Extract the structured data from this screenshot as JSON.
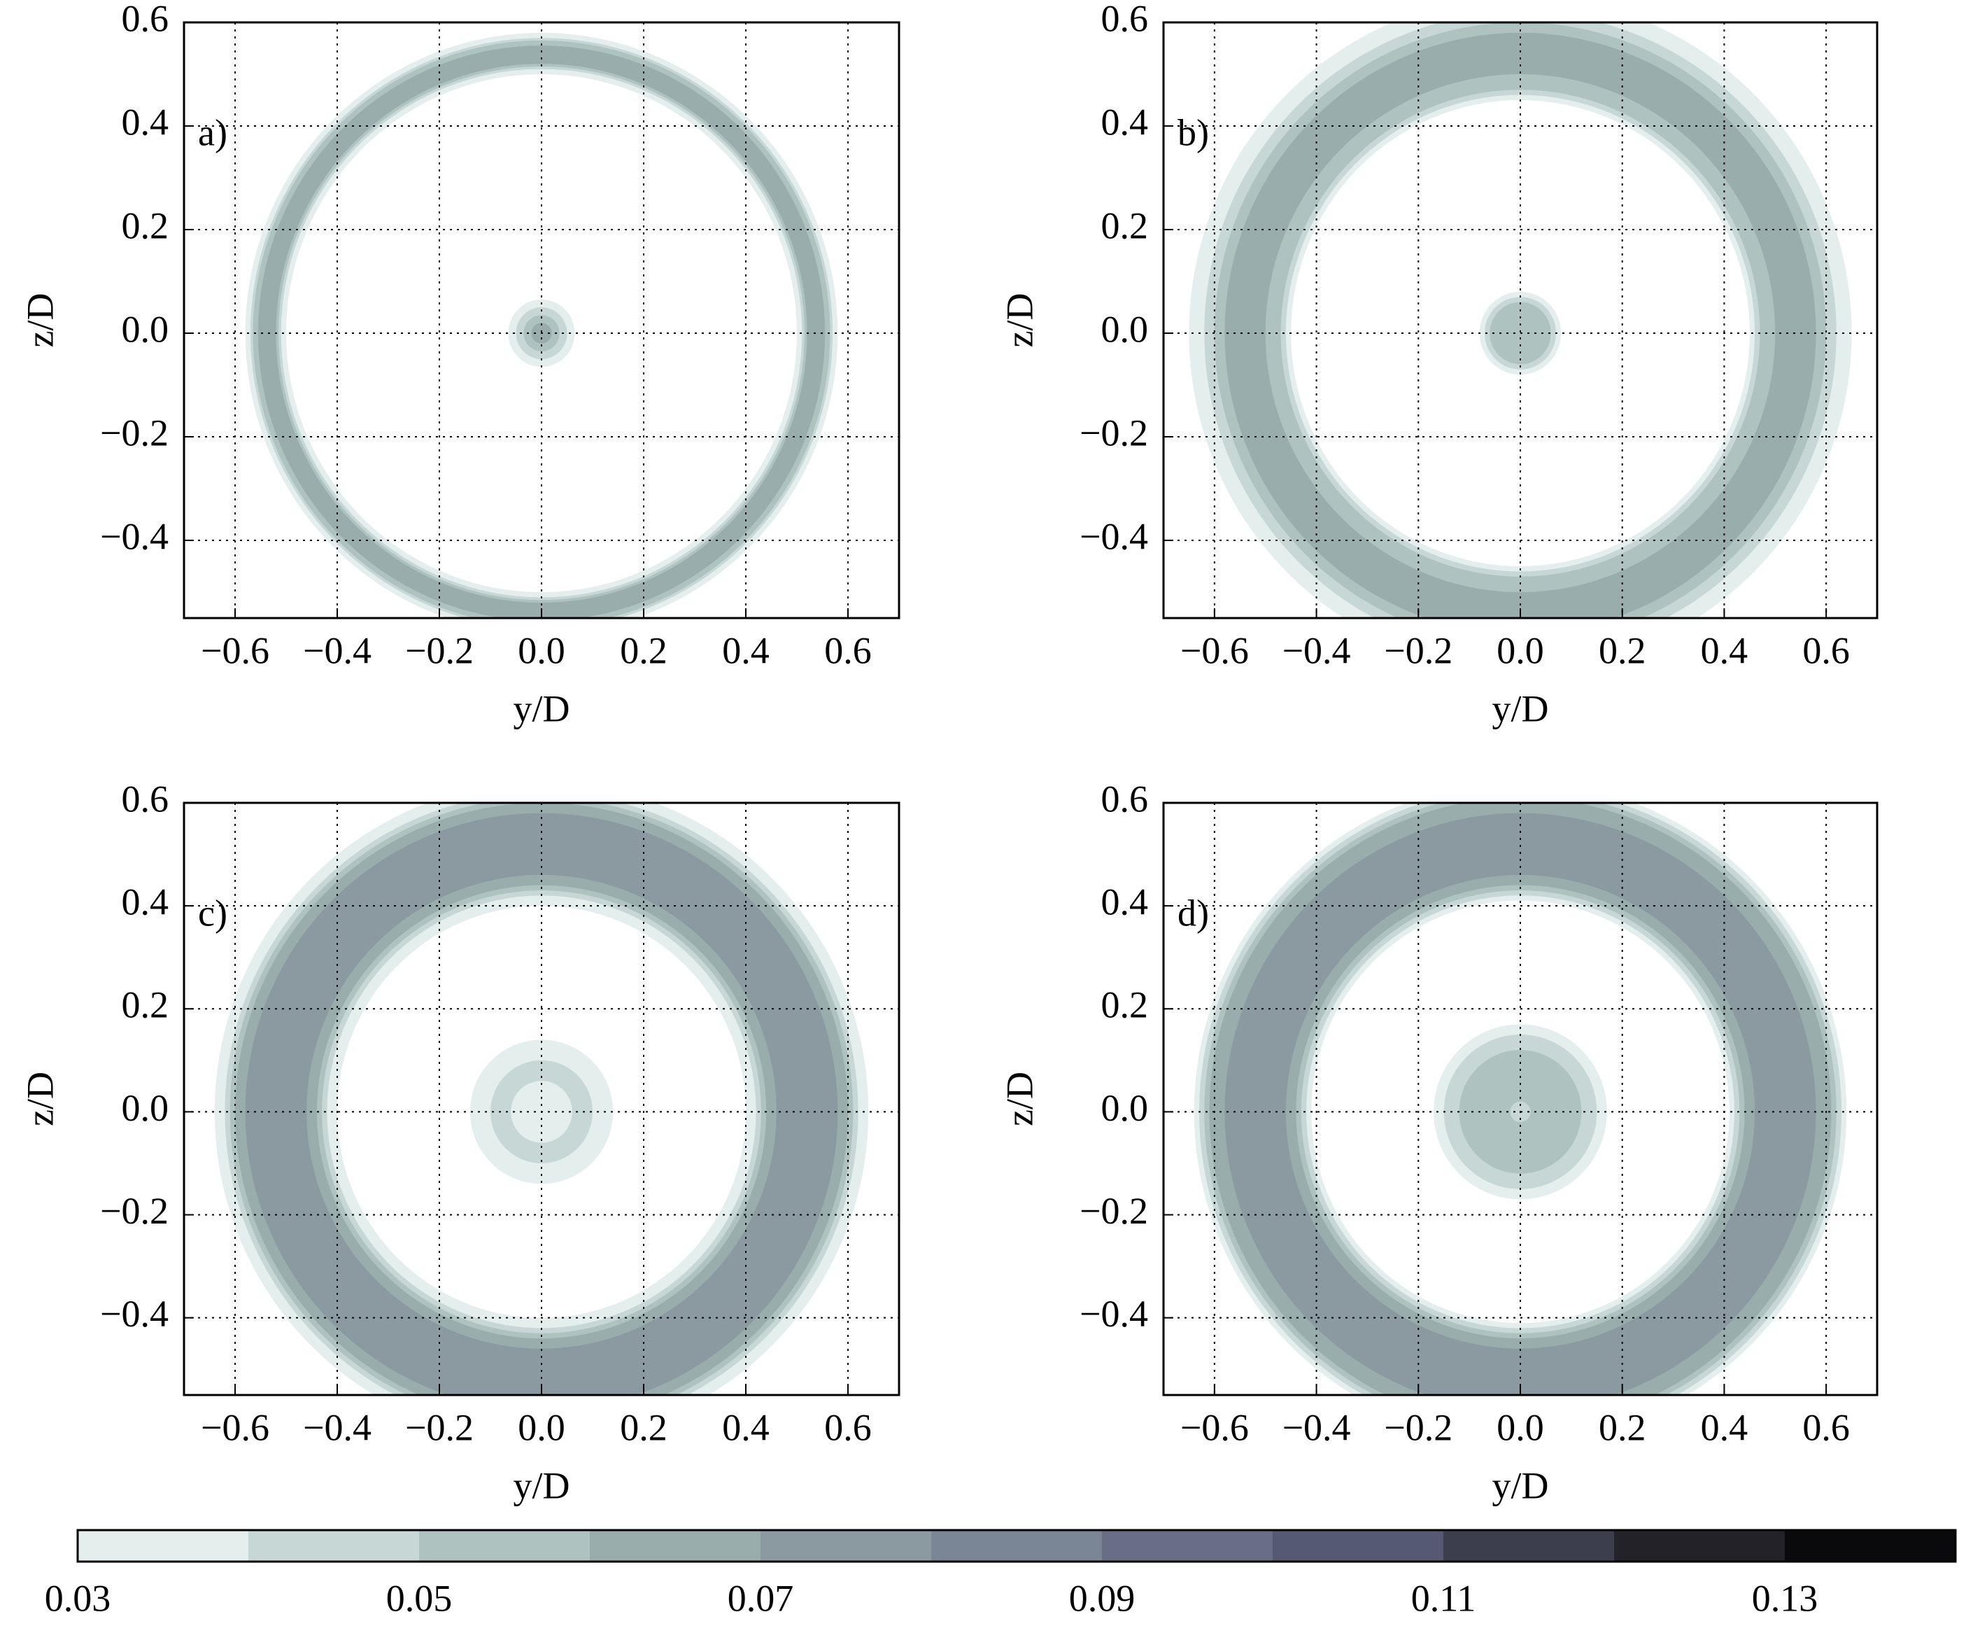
{
  "chart_data": [
    {
      "type": "contour",
      "label": "a)",
      "xlabel": "y/D",
      "ylabel": "z/D",
      "xlim": [
        -0.7,
        0.7
      ],
      "ylim": [
        -0.55,
        0.6
      ],
      "xticks": [
        {
          "value": -0.6,
          "label": "−0.6"
        },
        {
          "value": -0.4,
          "label": "−0.4"
        },
        {
          "value": -0.2,
          "label": "−0.2"
        },
        {
          "value": 0,
          "label": "0.0"
        },
        0.2,
        0.4,
        0.6
      ],
      "yticks": [
        {
          "value": -0.4,
          "label": "−0.4"
        },
        {
          "value": -0.2,
          "label": "−0.2"
        },
        {
          "value": 0,
          "label": "0.0"
        },
        0.2,
        0.4,
        0.6
      ],
      "grid": true,
      "contours": [
        {
          "level": 0.03,
          "radius": [
            0.5,
            0.58
          ]
        },
        {
          "level": 0.04,
          "radius": [
            0.51,
            0.57
          ]
        },
        {
          "level": 0.05,
          "radius": [
            0.515,
            0.565
          ]
        },
        {
          "level": 0.06,
          "radius": [
            0.52,
            0.555
          ]
        },
        {
          "level": 0.03,
          "radius": [
            0,
            0.065
          ]
        },
        {
          "level": 0.04,
          "radius": [
            0,
            0.05
          ]
        },
        {
          "level": 0.05,
          "radius": [
            0,
            0.035
          ]
        },
        {
          "level": 0.06,
          "radius": [
            0,
            0.02
          ]
        }
      ]
    },
    {
      "type": "contour",
      "label": "b)",
      "xlabel": "y/D",
      "ylabel": "z/D",
      "xlim": [
        -0.7,
        0.7
      ],
      "ylim": [
        -0.55,
        0.6
      ],
      "xticks": [
        {
          "value": -0.6,
          "label": "−0.6"
        },
        {
          "value": -0.4,
          "label": "−0.4"
        },
        {
          "value": -0.2,
          "label": "−0.2"
        },
        {
          "value": 0,
          "label": "0.0"
        },
        0.2,
        0.4,
        0.6
      ],
      "yticks": [
        {
          "value": -0.4,
          "label": "−0.4"
        },
        {
          "value": -0.2,
          "label": "−0.2"
        },
        {
          "value": 0,
          "label": "0.0"
        },
        0.2,
        0.4,
        0.6
      ],
      "grid": true,
      "contours": [
        {
          "level": 0.03,
          "radius": [
            0.45,
            0.65
          ]
        },
        {
          "level": 0.04,
          "radius": [
            0.46,
            0.62
          ]
        },
        {
          "level": 0.05,
          "radius": [
            0.47,
            0.6
          ]
        },
        {
          "level": 0.06,
          "radius": [
            0.5,
            0.58
          ]
        },
        {
          "level": 0.03,
          "radius": [
            0,
            0.08
          ]
        },
        {
          "level": 0.04,
          "radius": [
            0,
            0.07
          ]
        },
        {
          "level": 0.05,
          "radius": [
            0,
            0.06
          ]
        }
      ]
    },
    {
      "type": "contour",
      "label": "c)",
      "xlabel": "y/D",
      "ylabel": "z/D",
      "xlim": [
        -0.7,
        0.7
      ],
      "ylim": [
        -0.55,
        0.6
      ],
      "xticks": [
        {
          "value": -0.6,
          "label": "−0.6"
        },
        {
          "value": -0.4,
          "label": "−0.4"
        },
        {
          "value": -0.2,
          "label": "−0.2"
        },
        {
          "value": 0,
          "label": "0.0"
        },
        0.2,
        0.4,
        0.6
      ],
      "yticks": [
        {
          "value": -0.4,
          "label": "−0.4"
        },
        {
          "value": -0.2,
          "label": "−0.2"
        },
        {
          "value": 0,
          "label": "0.0"
        },
        0.2,
        0.4,
        0.6
      ],
      "grid": true,
      "contours": [
        {
          "level": 0.03,
          "radius": [
            0.4,
            0.64
          ]
        },
        {
          "level": 0.04,
          "radius": [
            0.42,
            0.62
          ]
        },
        {
          "level": 0.05,
          "radius": [
            0.43,
            0.61
          ]
        },
        {
          "level": 0.06,
          "radius": [
            0.44,
            0.6
          ]
        },
        {
          "level": 0.07,
          "radius": [
            0.46,
            0.58
          ]
        },
        {
          "level": 0.03,
          "radius": [
            0,
            0.14
          ]
        },
        {
          "level": 0.04,
          "radius": [
            0.06,
            0.1
          ]
        }
      ]
    },
    {
      "type": "contour",
      "label": "d)",
      "xlabel": "y/D",
      "ylabel": "z/D",
      "xlim": [
        -0.7,
        0.7
      ],
      "ylim": [
        -0.55,
        0.6
      ],
      "xticks": [
        {
          "value": -0.6,
          "label": "−0.6"
        },
        {
          "value": -0.4,
          "label": "−0.4"
        },
        {
          "value": -0.2,
          "label": "−0.2"
        },
        {
          "value": 0,
          "label": "0.0"
        },
        0.2,
        0.4,
        0.6
      ],
      "yticks": [
        {
          "value": -0.4,
          "label": "−0.4"
        },
        {
          "value": -0.2,
          "label": "−0.2"
        },
        {
          "value": 0,
          "label": "0.0"
        },
        0.2,
        0.4,
        0.6
      ],
      "grid": true,
      "contours": [
        {
          "level": 0.03,
          "radius": [
            0.41,
            0.64
          ]
        },
        {
          "level": 0.04,
          "radius": [
            0.42,
            0.63
          ]
        },
        {
          "level": 0.05,
          "radius": [
            0.43,
            0.62
          ]
        },
        {
          "level": 0.06,
          "radius": [
            0.44,
            0.61
          ]
        },
        {
          "level": 0.07,
          "radius": [
            0.46,
            0.58
          ]
        },
        {
          "level": 0.03,
          "radius": [
            0,
            0.17
          ]
        },
        {
          "level": 0.04,
          "radius": [
            0,
            0.15
          ]
        },
        {
          "level": 0.05,
          "radius": [
            0.02,
            0.12
          ]
        }
      ]
    }
  ],
  "colorbar": {
    "levels": [
      0.03,
      0.04,
      0.05,
      0.06,
      0.07,
      0.08,
      0.09,
      0.1,
      0.11,
      0.12,
      0.13,
      0.14
    ],
    "colors": [
      "#e4eeec",
      "#c6d7d5",
      "#aec2c0",
      "#9aadad",
      "#8a9aa0",
      "#7a8595",
      "#676e86",
      "#555a72",
      "#3c3e4e",
      "#222228",
      "#0a0a0c"
    ],
    "ticks": [
      0.03,
      0.05,
      0.07,
      0.09,
      0.11,
      0.13
    ]
  }
}
